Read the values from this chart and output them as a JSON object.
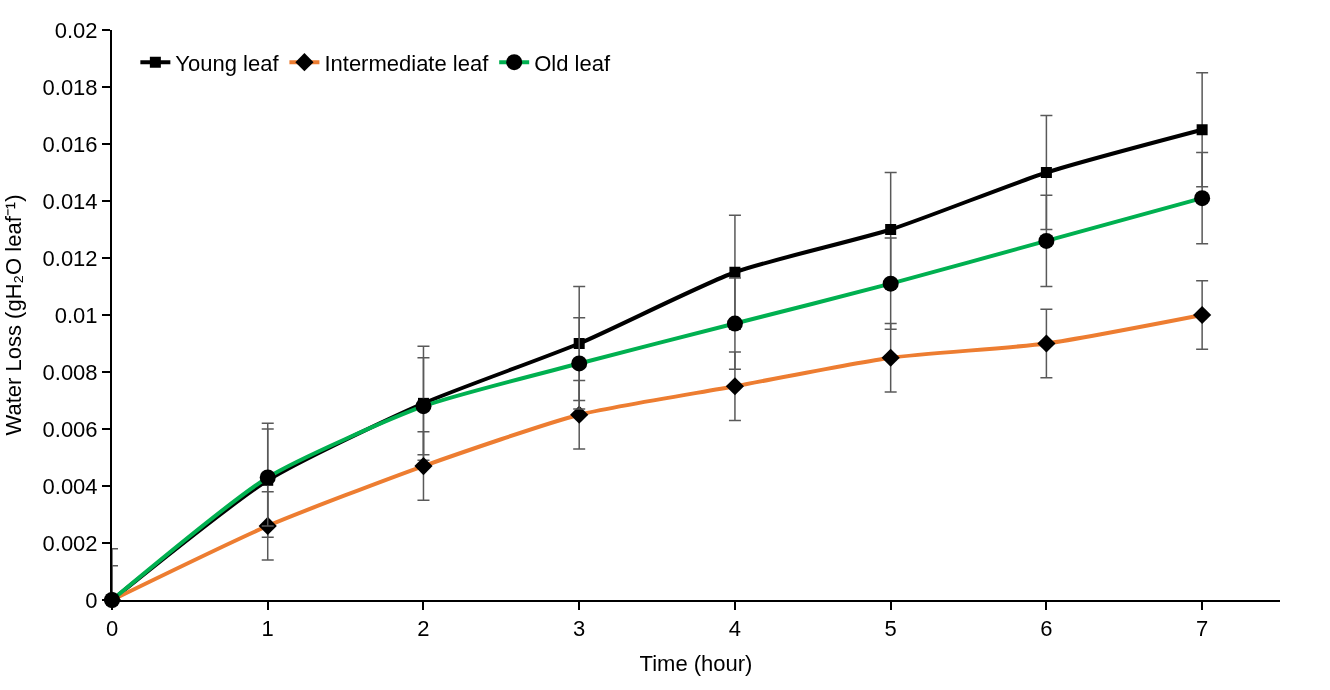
{
  "chart_data": {
    "type": "line",
    "xlabel": "Time (hour)",
    "ylabel": "Water Loss (gH₂O leaf⁻¹)",
    "x": [
      0,
      1,
      2,
      3,
      4,
      5,
      6,
      7
    ],
    "xlim": [
      0,
      7.5
    ],
    "xticks": [
      0,
      1,
      2,
      3,
      4,
      5,
      6,
      7
    ],
    "ylim": [
      0,
      0.02
    ],
    "yticks": [
      0,
      0.002,
      0.004,
      0.006,
      0.008,
      0.01,
      0.012,
      0.014,
      0.016,
      0.018,
      0.02
    ],
    "legend": "top left",
    "series": [
      {
        "name": "Young leaf",
        "color": "#000000",
        "marker": "square",
        "values": [
          0,
          0.0042,
          0.0069,
          0.009,
          0.0115,
          0.013,
          0.015,
          0.0165
        ],
        "errors": [
          0.0018,
          0.002,
          0.002,
          0.002,
          0.002,
          0.002,
          0.002,
          0.002
        ]
      },
      {
        "name": "Intermediate leaf",
        "color": "#ed7d31",
        "marker": "diamond",
        "values": [
          0,
          0.0026,
          0.0047,
          0.0065,
          0.0075,
          0.0085,
          0.009,
          0.01
        ],
        "errors": [
          null,
          0.0012,
          0.0012,
          0.0012,
          0.0012,
          0.0012,
          0.0012,
          0.0012
        ]
      },
      {
        "name": "Old leaf",
        "color": "#00b050",
        "marker": "circle",
        "values": [
          0,
          0.0043,
          0.0068,
          0.0083,
          0.0097,
          0.0111,
          0.0126,
          0.0141
        ],
        "errors": [
          0.0012,
          0.0017,
          0.0017,
          0.0016,
          0.0016,
          0.0016,
          0.0016,
          0.0016
        ]
      }
    ]
  }
}
